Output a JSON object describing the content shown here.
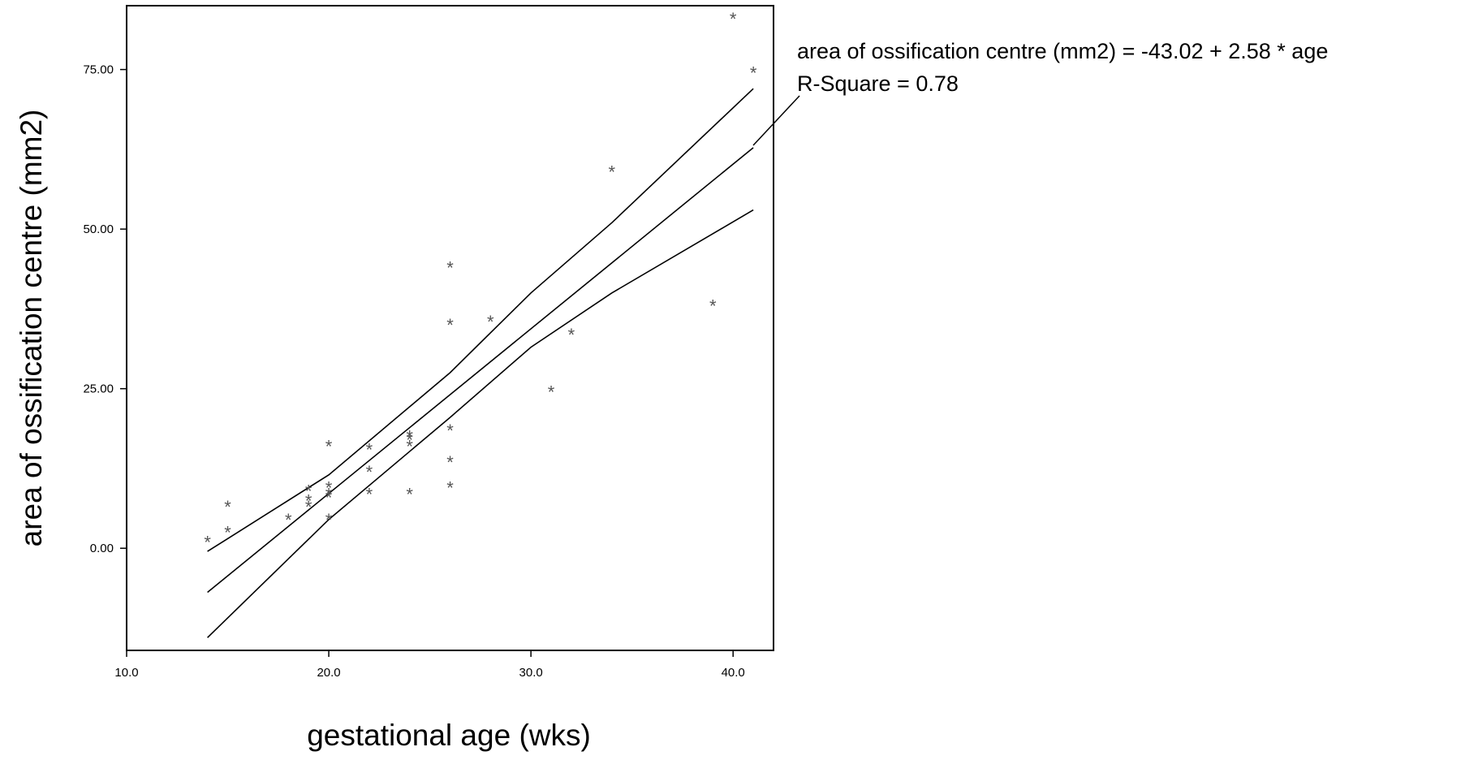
{
  "chart_data": {
    "type": "scatter",
    "title": "",
    "xlabel": "gestational age (wks)",
    "ylabel": "area of ossification centre (mm2)",
    "xlim": [
      10.0,
      42.0
    ],
    "ylim": [
      -16.0,
      85.0
    ],
    "x_ticks": [
      "10.0",
      "20.0",
      "30.0",
      "40.0"
    ],
    "x_tick_values": [
      10,
      20,
      30,
      40
    ],
    "y_ticks": [
      "0.00",
      "25.00",
      "50.00",
      "75.00"
    ],
    "y_tick_values": [
      0,
      25,
      50,
      75
    ],
    "grid": false,
    "legend": null,
    "marker": "*",
    "points": [
      {
        "x": 14,
        "y": 1.5
      },
      {
        "x": 15,
        "y": 3.0
      },
      {
        "x": 15,
        "y": 7.0
      },
      {
        "x": 18,
        "y": 5.0
      },
      {
        "x": 19,
        "y": 7.0
      },
      {
        "x": 19,
        "y": 8.0
      },
      {
        "x": 19,
        "y": 9.5
      },
      {
        "x": 20,
        "y": 5.0
      },
      {
        "x": 20,
        "y": 8.5
      },
      {
        "x": 20,
        "y": 9.0
      },
      {
        "x": 20,
        "y": 10.0
      },
      {
        "x": 20,
        "y": 16.5
      },
      {
        "x": 22,
        "y": 9.0
      },
      {
        "x": 22,
        "y": 12.5
      },
      {
        "x": 22,
        "y": 16.0
      },
      {
        "x": 24,
        "y": 9.0
      },
      {
        "x": 24,
        "y": 16.5
      },
      {
        "x": 24,
        "y": 17.5
      },
      {
        "x": 24,
        "y": 18.0
      },
      {
        "x": 26,
        "y": 10.0
      },
      {
        "x": 26,
        "y": 14.0
      },
      {
        "x": 26,
        "y": 19.0
      },
      {
        "x": 26,
        "y": 35.5
      },
      {
        "x": 26,
        "y": 44.5
      },
      {
        "x": 28,
        "y": 36.0
      },
      {
        "x": 31,
        "y": 25.0
      },
      {
        "x": 32,
        "y": 34.0
      },
      {
        "x": 34,
        "y": 59.5
      },
      {
        "x": 39,
        "y": 38.5
      },
      {
        "x": 40,
        "y": 83.5
      },
      {
        "x": 41,
        "y": 75.0
      }
    ],
    "fit": {
      "intercept": -43.02,
      "slope": 2.58,
      "x_range": [
        14,
        41
      ]
    },
    "confidence_band": {
      "upper": [
        [
          14,
          -0.5
        ],
        [
          15,
          1.5
        ],
        [
          20,
          11.5
        ],
        [
          26,
          27.5
        ],
        [
          30,
          40.0
        ],
        [
          34,
          51.0
        ],
        [
          41,
          72.0
        ]
      ],
      "lower": [
        [
          14,
          -14.0
        ],
        [
          20,
          4.5
        ],
        [
          26,
          20.5
        ],
        [
          30,
          31.5
        ],
        [
          34,
          40.0
        ],
        [
          41,
          53.0
        ]
      ]
    },
    "annotations": [
      "area of ossification centre (mm2) = -43.02 + 2.58 * age",
      "R-Square = 0.78"
    ]
  }
}
